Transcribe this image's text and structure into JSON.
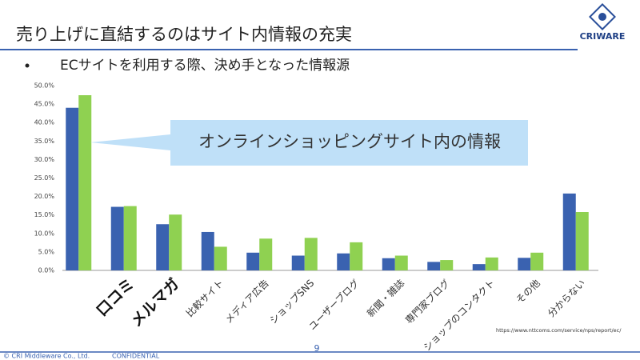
{
  "header": {
    "title": "売り上げに直結するのはサイト内情報の充実",
    "logo": "CRIWARE",
    "bullet": "ECサイトを利用する際、決め手となった情報源"
  },
  "chart_data": {
    "type": "bar",
    "annotation": "オンラインショッピングサイト内の情報",
    "source": "https://www.nttcoms.com/service/nps/report/ec/",
    "categories": [
      null,
      "口コミ",
      "メルマガ",
      "比較サイト",
      "メディア広告",
      "ショップSNS",
      "ユーザーブログ",
      "新聞・雑誌",
      "専門家ブログ",
      "ショップのコンタクト",
      "その他",
      "分からない"
    ],
    "series": [
      {
        "color": "#3a62b0",
        "values": [
          44.0,
          17.2,
          12.5,
          10.4,
          4.8,
          4.0,
          4.6,
          3.3,
          2.3,
          1.7,
          3.4,
          20.8
        ]
      },
      {
        "color": "#8fd151",
        "values": [
          47.4,
          17.4,
          15.1,
          6.4,
          8.6,
          8.8,
          7.6,
          4.0,
          2.8,
          3.5,
          4.8,
          15.8
        ]
      }
    ],
    "ylim": [
      0,
      50
    ],
    "yticks": [
      {
        "value": 0,
        "label": "0.0%"
      },
      {
        "value": 5,
        "label": "5.0%"
      },
      {
        "value": 10,
        "label": "10.0%"
      },
      {
        "value": 15,
        "label": "15.0%"
      },
      {
        "value": 20,
        "label": "20.0%"
      },
      {
        "value": 25,
        "label": "25.0%"
      },
      {
        "value": 30,
        "label": "30.0%"
      },
      {
        "value": 35,
        "label": "35.0%"
      },
      {
        "value": 40,
        "label": "40.0%"
      },
      {
        "value": 45,
        "label": "45.0%"
      },
      {
        "value": 50,
        "label": "50.0%"
      }
    ]
  },
  "footer": {
    "copyright": "© CRI Middleware Co., Ltd.",
    "confidential": "CONFIDENTIAL",
    "page": "9"
  }
}
